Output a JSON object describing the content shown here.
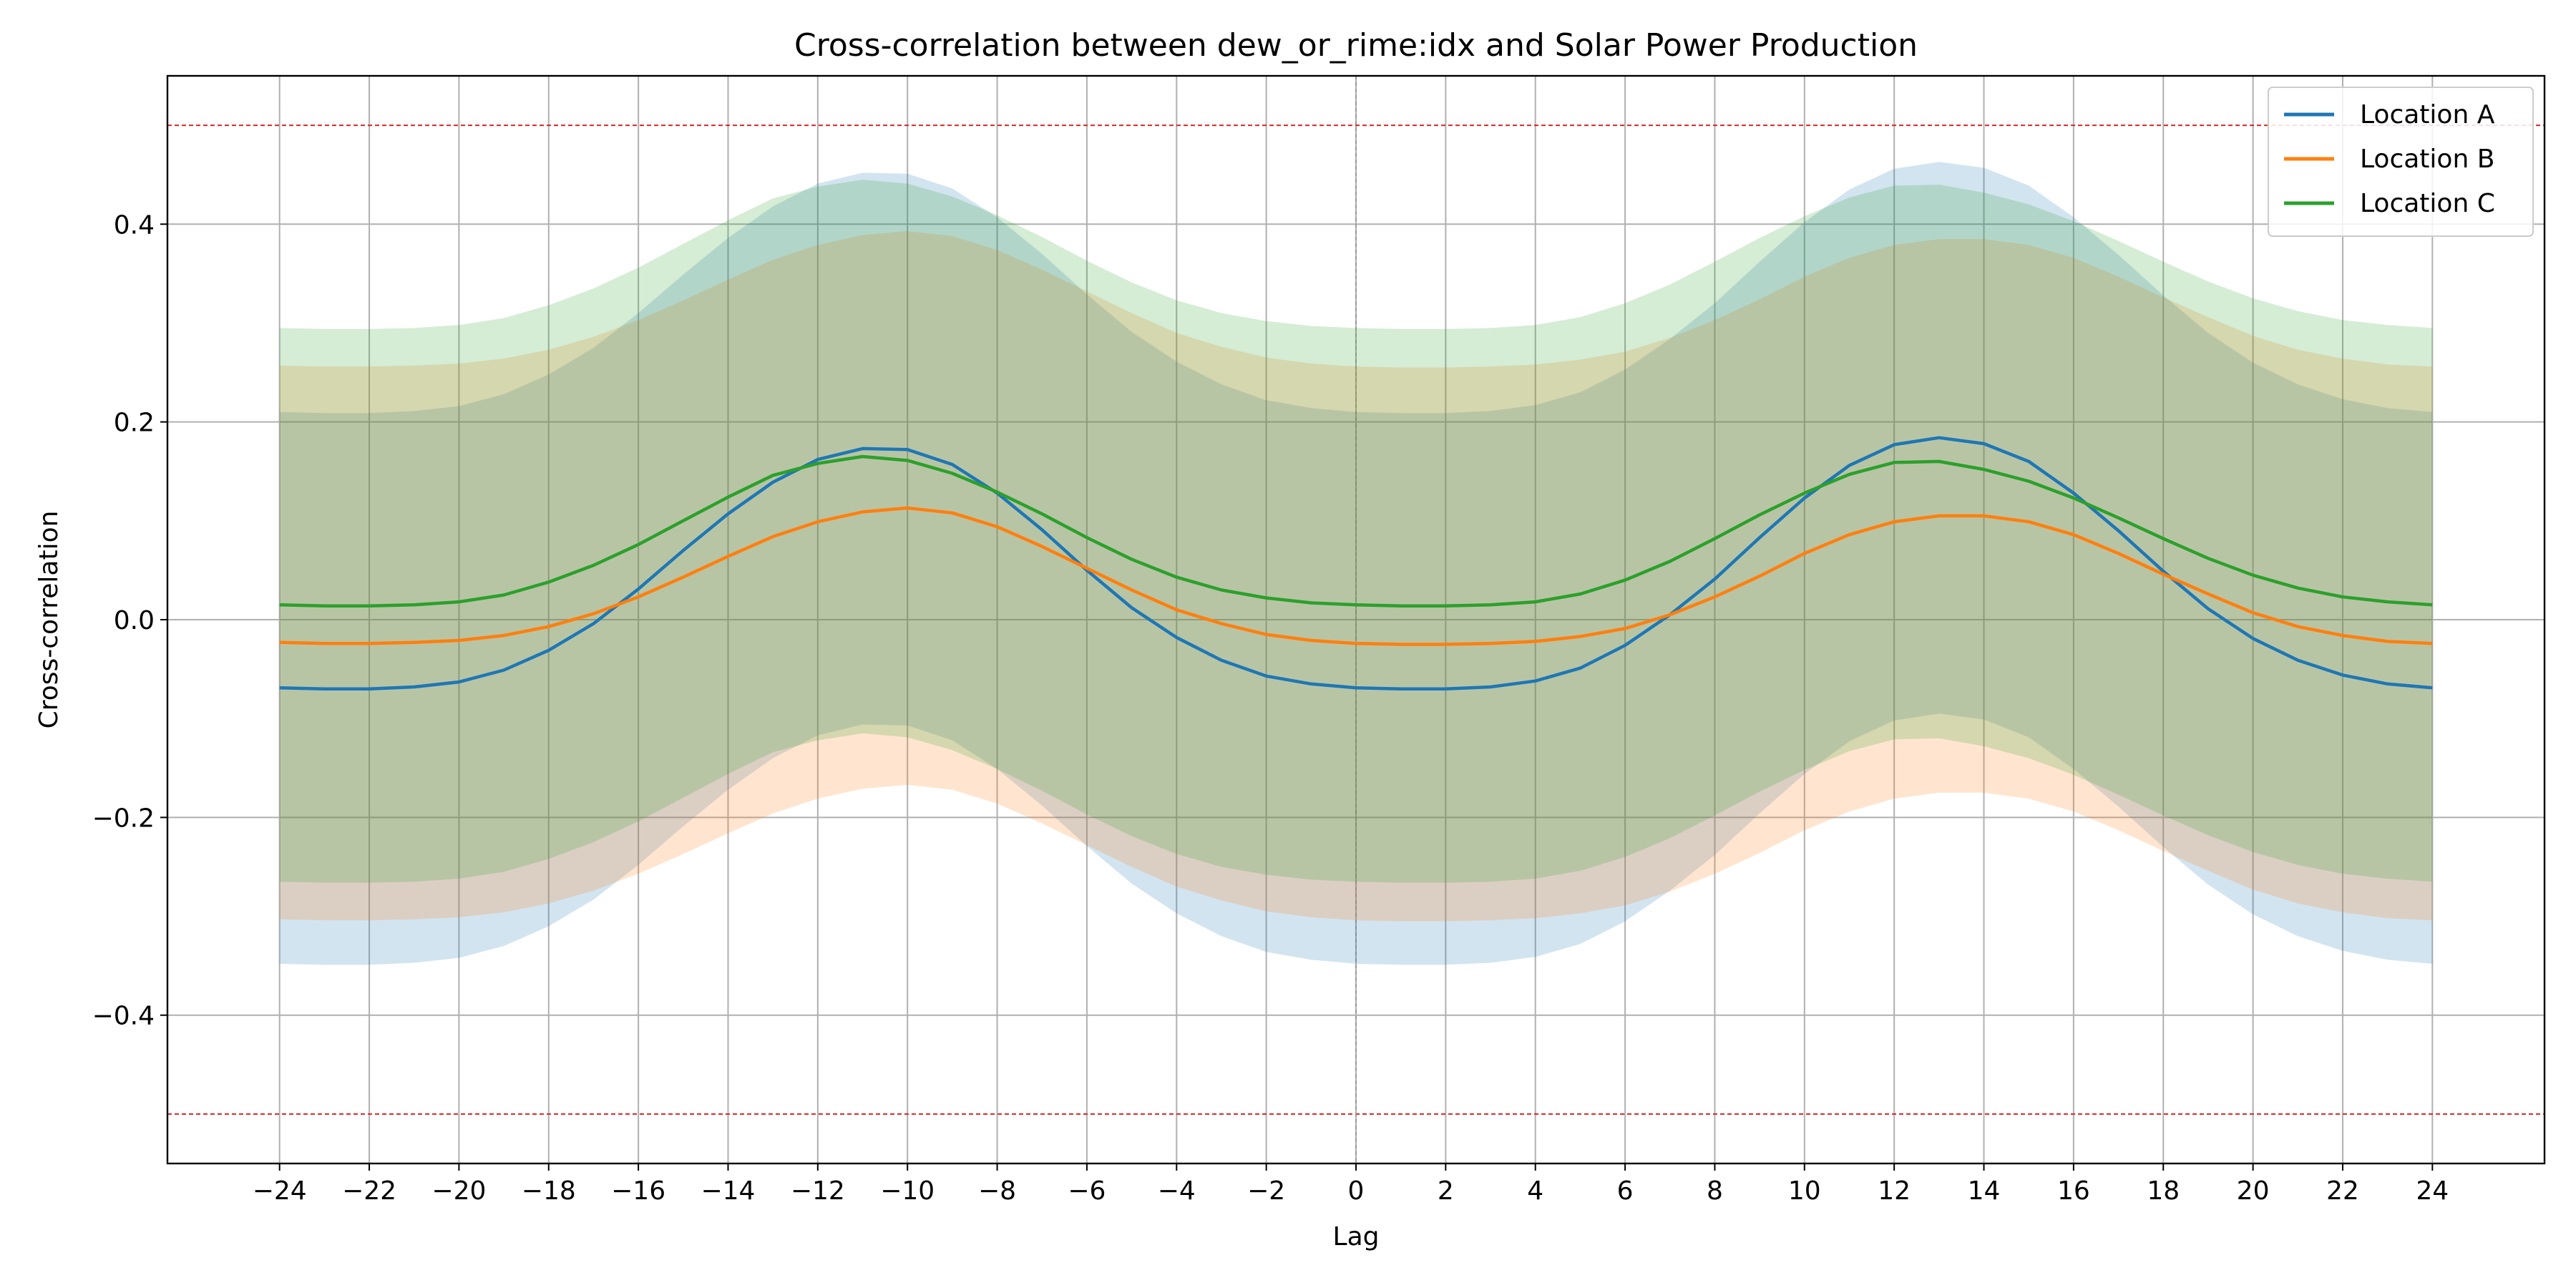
{
  "chart_data": {
    "type": "line",
    "title": "Cross-correlation between dew_or_rime:idx and Solar Power Production",
    "xlabel": "Lag",
    "ylabel": "Cross-correlation",
    "xlim": [
      -26.5,
      26.5
    ],
    "ylim": [
      -0.55,
      0.55
    ],
    "xticks": [
      -24,
      -22,
      -20,
      -18,
      -16,
      -14,
      -12,
      -10,
      -8,
      -6,
      -4,
      -2,
      0,
      2,
      4,
      6,
      8,
      10,
      12,
      14,
      16,
      18,
      20,
      22,
      24
    ],
    "xtick_labels": [
      "−24",
      "−22",
      "−20",
      "−18",
      "−16",
      "−14",
      "−12",
      "−10",
      "−8",
      "−6",
      "−4",
      "−2",
      "0",
      "2",
      "4",
      "6",
      "8",
      "10",
      "12",
      "14",
      "16",
      "18",
      "20",
      "22",
      "24"
    ],
    "yticks": [
      -0.4,
      -0.2,
      0.0,
      0.2,
      0.4
    ],
    "ytick_labels": [
      "−0.4",
      "−0.2",
      "0.0",
      "0.2",
      "0.4"
    ],
    "grid": true,
    "legend_position": "top-right",
    "reference_lines": {
      "horizontal": [
        0.5,
        -0.5
      ],
      "horizontal_color": "#d62728",
      "vertical": [
        0
      ],
      "vertical_color": "#999999"
    },
    "x": [
      -24,
      -23,
      -22,
      -21,
      -20,
      -19,
      -18,
      -17,
      -16,
      -15,
      -14,
      -13,
      -12,
      -11,
      -10,
      -9,
      -8,
      -7,
      -6,
      -5,
      -4,
      -3,
      -2,
      -1,
      0,
      1,
      2,
      3,
      4,
      5,
      6,
      7,
      8,
      9,
      10,
      11,
      12,
      13,
      14,
      15,
      16,
      17,
      18,
      19,
      20,
      21,
      22,
      23,
      24
    ],
    "series": [
      {
        "name": "Location A",
        "color": "#1f77b4",
        "values": [
          -0.069,
          -0.07,
          -0.07,
          -0.068,
          -0.063,
          -0.051,
          -0.031,
          -0.004,
          0.031,
          0.07,
          0.107,
          0.139,
          0.162,
          0.173,
          0.172,
          0.157,
          0.128,
          0.091,
          0.05,
          0.012,
          -0.018,
          -0.041,
          -0.057,
          -0.065,
          -0.069,
          -0.07,
          -0.07,
          -0.068,
          -0.062,
          -0.049,
          -0.026,
          0.005,
          0.041,
          0.083,
          0.123,
          0.156,
          0.177,
          0.184,
          0.178,
          0.16,
          0.128,
          0.09,
          0.049,
          0.011,
          -0.019,
          -0.041,
          -0.056,
          -0.065,
          -0.069
        ],
        "lower": [
          -0.348,
          -0.349,
          -0.349,
          -0.347,
          -0.342,
          -0.33,
          -0.31,
          -0.283,
          -0.248,
          -0.209,
          -0.172,
          -0.14,
          -0.117,
          -0.106,
          -0.107,
          -0.122,
          -0.151,
          -0.188,
          -0.229,
          -0.267,
          -0.297,
          -0.32,
          -0.336,
          -0.344,
          -0.348,
          -0.349,
          -0.349,
          -0.347,
          -0.341,
          -0.328,
          -0.305,
          -0.274,
          -0.238,
          -0.196,
          -0.156,
          -0.123,
          -0.102,
          -0.095,
          -0.101,
          -0.119,
          -0.151,
          -0.189,
          -0.23,
          -0.268,
          -0.298,
          -0.32,
          -0.335,
          -0.344,
          -0.348
        ],
        "upper": [
          0.21,
          0.209,
          0.209,
          0.211,
          0.216,
          0.228,
          0.248,
          0.275,
          0.31,
          0.349,
          0.386,
          0.418,
          0.441,
          0.452,
          0.451,
          0.436,
          0.407,
          0.37,
          0.329,
          0.291,
          0.261,
          0.238,
          0.222,
          0.214,
          0.21,
          0.209,
          0.209,
          0.211,
          0.217,
          0.23,
          0.253,
          0.284,
          0.32,
          0.362,
          0.402,
          0.435,
          0.456,
          0.463,
          0.457,
          0.439,
          0.407,
          0.369,
          0.328,
          0.29,
          0.26,
          0.238,
          0.223,
          0.214,
          0.21
        ]
      },
      {
        "name": "Location B",
        "color": "#ff7f0e",
        "values": [
          -0.023,
          -0.024,
          -0.024,
          -0.023,
          -0.021,
          -0.016,
          -0.007,
          0.006,
          0.023,
          0.043,
          0.064,
          0.084,
          0.099,
          0.109,
          0.113,
          0.108,
          0.094,
          0.074,
          0.052,
          0.03,
          0.01,
          -0.004,
          -0.015,
          -0.021,
          -0.024,
          -0.025,
          -0.025,
          -0.024,
          -0.022,
          -0.017,
          -0.009,
          0.005,
          0.023,
          0.044,
          0.067,
          0.086,
          0.099,
          0.105,
          0.105,
          0.099,
          0.086,
          0.067,
          0.046,
          0.026,
          0.007,
          -0.007,
          -0.016,
          -0.022,
          -0.024
        ],
        "lower": [
          -0.303,
          -0.304,
          -0.304,
          -0.303,
          -0.301,
          -0.296,
          -0.287,
          -0.274,
          -0.257,
          -0.237,
          -0.216,
          -0.196,
          -0.181,
          -0.171,
          -0.167,
          -0.172,
          -0.186,
          -0.206,
          -0.228,
          -0.25,
          -0.27,
          -0.284,
          -0.295,
          -0.301,
          -0.304,
          -0.305,
          -0.305,
          -0.304,
          -0.302,
          -0.297,
          -0.289,
          -0.275,
          -0.257,
          -0.236,
          -0.213,
          -0.194,
          -0.181,
          -0.175,
          -0.175,
          -0.181,
          -0.194,
          -0.213,
          -0.234,
          -0.254,
          -0.273,
          -0.287,
          -0.296,
          -0.302,
          -0.304
        ],
        "upper": [
          0.257,
          0.256,
          0.256,
          0.257,
          0.259,
          0.264,
          0.273,
          0.286,
          0.303,
          0.323,
          0.344,
          0.364,
          0.379,
          0.389,
          0.393,
          0.388,
          0.374,
          0.354,
          0.332,
          0.31,
          0.29,
          0.276,
          0.265,
          0.259,
          0.256,
          0.255,
          0.255,
          0.256,
          0.258,
          0.263,
          0.271,
          0.285,
          0.303,
          0.324,
          0.347,
          0.366,
          0.379,
          0.385,
          0.385,
          0.379,
          0.366,
          0.347,
          0.326,
          0.306,
          0.287,
          0.273,
          0.264,
          0.258,
          0.256
        ]
      },
      {
        "name": "Location C",
        "color": "#2ca02c",
        "values": [
          0.015,
          0.014,
          0.014,
          0.015,
          0.018,
          0.025,
          0.038,
          0.055,
          0.076,
          0.1,
          0.124,
          0.146,
          0.158,
          0.165,
          0.161,
          0.148,
          0.129,
          0.107,
          0.083,
          0.061,
          0.043,
          0.03,
          0.022,
          0.017,
          0.015,
          0.014,
          0.014,
          0.015,
          0.018,
          0.026,
          0.04,
          0.059,
          0.082,
          0.106,
          0.128,
          0.147,
          0.159,
          0.16,
          0.152,
          0.14,
          0.123,
          0.103,
          0.082,
          0.062,
          0.045,
          0.032,
          0.023,
          0.018,
          0.015
        ],
        "lower": [
          -0.265,
          -0.266,
          -0.266,
          -0.265,
          -0.262,
          -0.255,
          -0.242,
          -0.225,
          -0.204,
          -0.18,
          -0.156,
          -0.134,
          -0.122,
          -0.115,
          -0.119,
          -0.132,
          -0.151,
          -0.173,
          -0.197,
          -0.219,
          -0.237,
          -0.25,
          -0.258,
          -0.263,
          -0.265,
          -0.266,
          -0.266,
          -0.265,
          -0.262,
          -0.254,
          -0.24,
          -0.221,
          -0.198,
          -0.174,
          -0.152,
          -0.133,
          -0.121,
          -0.12,
          -0.128,
          -0.14,
          -0.157,
          -0.177,
          -0.198,
          -0.218,
          -0.235,
          -0.248,
          -0.257,
          -0.262,
          -0.265
        ],
        "upper": [
          0.295,
          0.294,
          0.294,
          0.295,
          0.298,
          0.305,
          0.318,
          0.335,
          0.356,
          0.38,
          0.404,
          0.426,
          0.438,
          0.445,
          0.441,
          0.428,
          0.409,
          0.387,
          0.363,
          0.341,
          0.323,
          0.31,
          0.302,
          0.297,
          0.295,
          0.294,
          0.294,
          0.295,
          0.298,
          0.306,
          0.32,
          0.339,
          0.362,
          0.386,
          0.408,
          0.427,
          0.439,
          0.44,
          0.432,
          0.42,
          0.403,
          0.383,
          0.362,
          0.342,
          0.325,
          0.312,
          0.303,
          0.298,
          0.295
        ]
      }
    ]
  }
}
